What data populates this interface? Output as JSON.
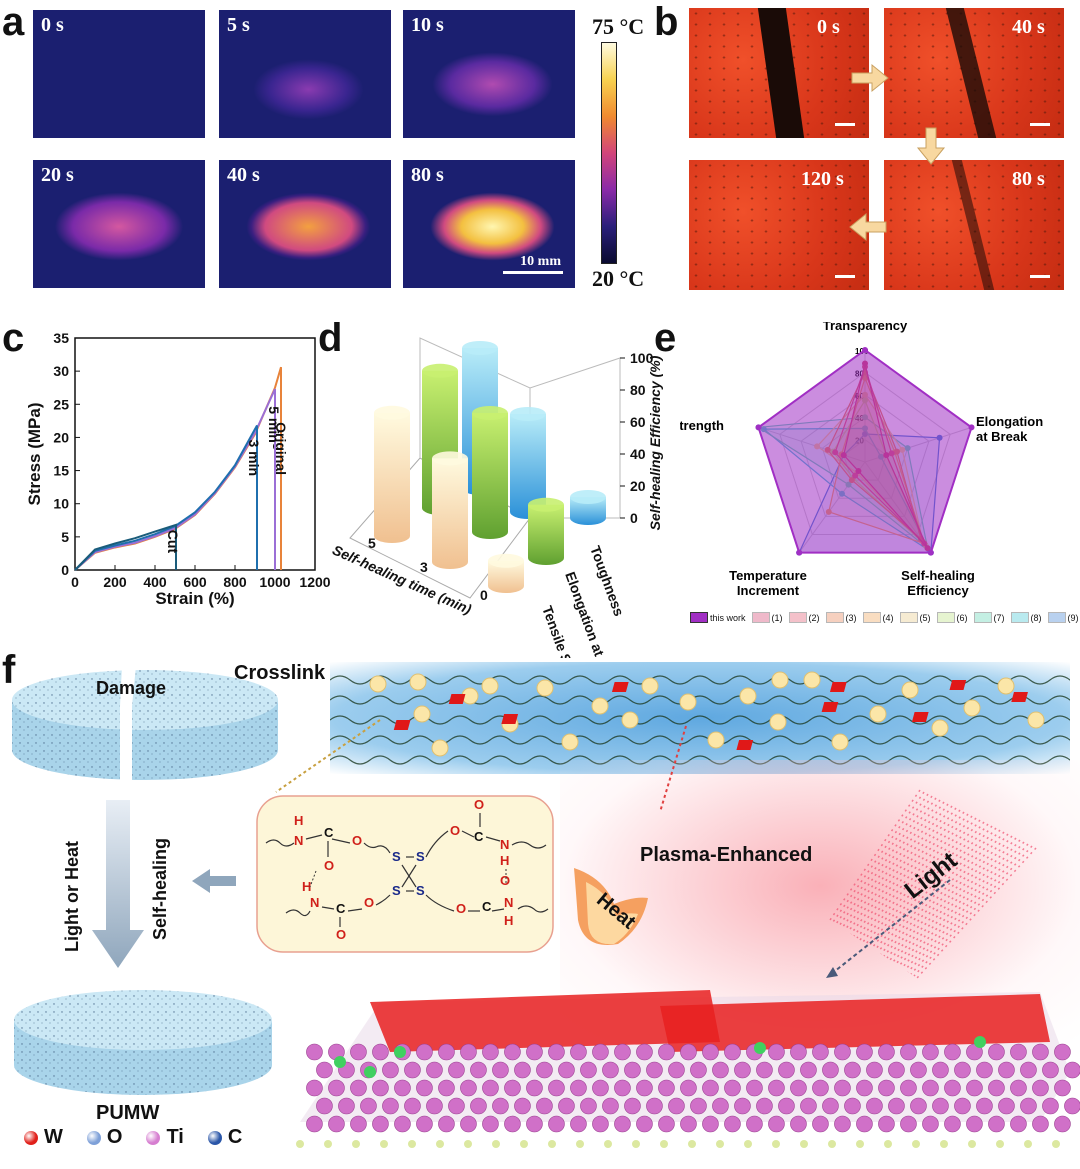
{
  "panels": {
    "a": "a",
    "b": "b",
    "c": "c",
    "d": "d",
    "e": "e",
    "f": "f"
  },
  "panel_a": {
    "frames": [
      "0 s",
      "5 s",
      "10 s",
      "20 s",
      "40 s",
      "80 s"
    ],
    "scale_label": "10 mm",
    "colorbar_max": "75 °C",
    "colorbar_min": "20 °C"
  },
  "panel_b": {
    "frames": [
      "0 s",
      "40 s",
      "120 s",
      "80 s"
    ]
  },
  "chart_data": [
    {
      "type": "line",
      "xlabel": "Strain (%)",
      "ylabel": "Stress (MPa)",
      "xlim": [
        0,
        1200
      ],
      "ylim": [
        0,
        35
      ],
      "x_ticks": [
        0,
        200,
        400,
        600,
        800,
        1000,
        1200
      ],
      "y_ticks": [
        0,
        5,
        10,
        15,
        20,
        25,
        30,
        35
      ],
      "series": [
        {
          "name": "Original",
          "color": "#e8833a",
          "x": [
            0,
            100,
            200,
            300,
            400,
            500,
            600,
            700,
            800,
            900,
            1000,
            1030
          ],
          "y": [
            0,
            2.6,
            3.4,
            4.0,
            5.0,
            6.2,
            8.3,
            11.5,
            15.5,
            20.5,
            27.5,
            30.6
          ]
        },
        {
          "name": "5 min",
          "color": "#9b6fd6",
          "x": [
            0,
            100,
            200,
            300,
            400,
            500,
            600,
            700,
            800,
            900,
            1000
          ],
          "y": [
            0,
            2.7,
            3.5,
            4.1,
            5.1,
            6.3,
            8.4,
            11.6,
            15.6,
            20.7,
            27.3
          ]
        },
        {
          "name": "3 min",
          "color": "#1f6fae",
          "x": [
            0,
            100,
            200,
            300,
            400,
            500,
            600,
            700,
            800,
            910
          ],
          "y": [
            0,
            2.9,
            3.7,
            4.4,
            5.4,
            6.6,
            8.7,
            11.8,
            15.8,
            21.8
          ]
        },
        {
          "name": "Cut",
          "color": "#1a5c7a",
          "x": [
            0,
            100,
            200,
            300,
            400,
            505
          ],
          "y": [
            0,
            3.1,
            4.0,
            4.8,
            5.8,
            6.8
          ]
        }
      ]
    },
    {
      "type": "bar",
      "zlabel": "Self-healing Efficiency (%)",
      "xlabel": "Self-healing time (min)",
      "z_ticks": [
        0,
        20,
        40,
        60,
        80,
        100
      ],
      "time_ticks": [
        "5",
        "3",
        "0"
      ],
      "categories": [
        "Tensile Strength",
        "Elongation at Break",
        "Toughness"
      ],
      "series": [
        {
          "time": "5",
          "values": [
            88,
            98,
            100
          ]
        },
        {
          "time": "3",
          "values": [
            74,
            85,
            70
          ]
        },
        {
          "time": "0",
          "values": [
            18,
            38,
            15
          ]
        }
      ]
    },
    {
      "type": "radar",
      "axes": [
        "Transparency",
        "Elongation at Break",
        "Self-healing Efficiency",
        "Temperature Increment",
        "Strength"
      ],
      "r_ticks": [
        20,
        40,
        60,
        80,
        100
      ],
      "legend_position": "bottom",
      "series": [
        {
          "name": "this work",
          "color": "#a12fc4",
          "values": [
            100,
            100,
            100,
            100,
            100
          ]
        },
        {
          "name": "(1)",
          "color": "#d43a6a",
          "values": [
            88,
            20,
            95,
            10,
            20
          ]
        },
        {
          "name": "(2)",
          "color": "#e0506a",
          "values": [
            85,
            25,
            90,
            15,
            28
          ]
        },
        {
          "name": "(3)",
          "color": "#e87a4a",
          "values": [
            80,
            30,
            85,
            20,
            35
          ]
        },
        {
          "name": "(4)",
          "color": "#f0a050",
          "values": [
            75,
            28,
            90,
            55,
            22
          ]
        },
        {
          "name": "(5)",
          "color": "#e8c880",
          "values": [
            60,
            35,
            88,
            12,
            45
          ]
        },
        {
          "name": "(6)",
          "color": "#b8e07a",
          "values": [
            55,
            20,
            92,
            18,
            30
          ]
        },
        {
          "name": "(7)",
          "color": "#5ad4b0",
          "values": [
            40,
            40,
            95,
            25,
            100
          ]
        },
        {
          "name": "(8)",
          "color": "#3ac4d4",
          "values": [
            30,
            15,
            98,
            35,
            95
          ]
        },
        {
          "name": "(9)",
          "color": "#3a7ed4",
          "values": [
            25,
            70,
            100,
            100,
            20
          ]
        }
      ]
    }
  ],
  "panel_f": {
    "damage": "Damage",
    "crosslink": "Crosslink",
    "light_or_heat": "Light or Heat",
    "self_healing": "Self-healing",
    "plasma": "Plasma-Enhanced",
    "heat": "Heat",
    "light": "Light",
    "pumw": "PUMW",
    "atoms": [
      {
        "sym": "W",
        "color": "#e0201a"
      },
      {
        "sym": "O",
        "color": "#7ea0d8"
      },
      {
        "sym": "Ti",
        "color": "#d67ed0"
      },
      {
        "sym": "C",
        "color": "#2a56a8"
      }
    ],
    "chem": {
      "H": "H",
      "N": "N",
      "O": "O",
      "C": "C",
      "S": "S"
    }
  }
}
